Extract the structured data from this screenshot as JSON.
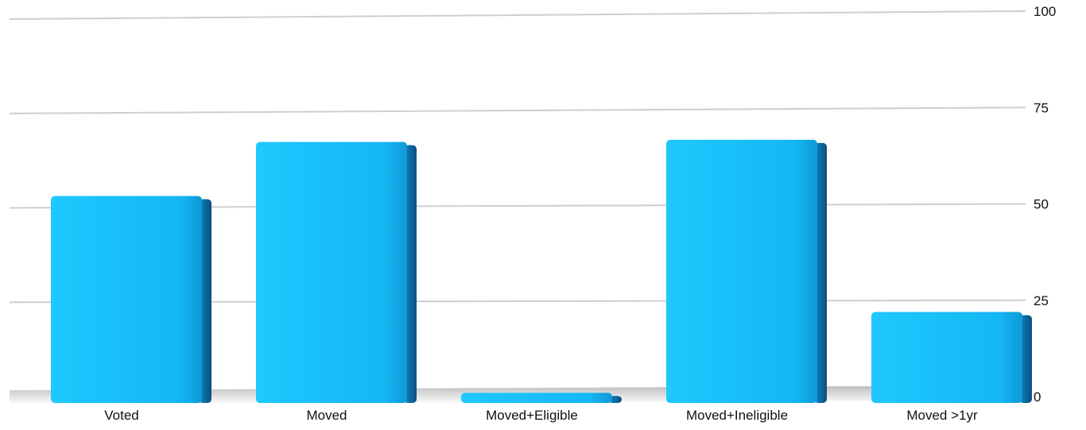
{
  "chart_data": {
    "type": "bar",
    "title": "",
    "xlabel": "",
    "ylabel": "",
    "categories": [
      "Voted",
      "Moved",
      "Moved+Eligible",
      "Moved+Ineligible",
      "Moved >1yr"
    ],
    "values": [
      53,
      67,
      1,
      67,
      22
    ],
    "ylim": [
      0,
      100
    ],
    "yticks": [
      0,
      25,
      50,
      75,
      100
    ],
    "grid": true,
    "y_axis_side": "right",
    "legend": "none",
    "bar_color": "#19BDF6",
    "bar_shadow_color": "#0E6FB0"
  }
}
